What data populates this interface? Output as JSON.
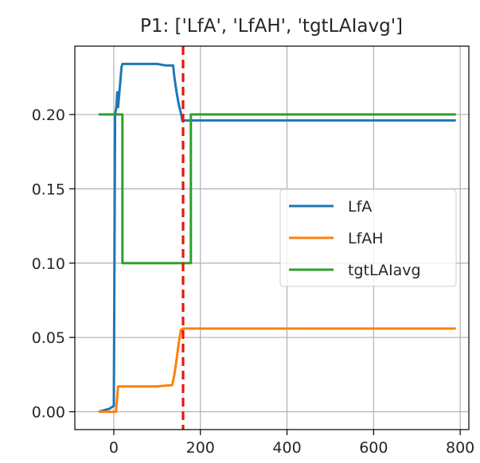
{
  "chart_data": {
    "type": "line",
    "title": "P1: ['LfA', 'LfAH', 'tgtLAIavg']",
    "xlabel": "",
    "ylabel": "",
    "xlim": [
      -90,
      820
    ],
    "ylim": [
      -0.012,
      0.246
    ],
    "xticks": [
      0,
      200,
      400,
      600,
      800
    ],
    "xtick_labels": [
      "0",
      "200",
      "400",
      "600",
      "800"
    ],
    "yticks": [
      0.0,
      0.05,
      0.1,
      0.15,
      0.2
    ],
    "ytick_labels": [
      "0.00",
      "0.05",
      "0.10",
      "0.15",
      "0.20"
    ],
    "grid": true,
    "legend_position": "center-right",
    "vline": {
      "x": 160,
      "color": "#e8170b",
      "style": "dashed"
    },
    "series": [
      {
        "name": "LfA",
        "color": "#1f77b4",
        "x": [
          -35,
          -10,
          0,
          3,
          6,
          8,
          10,
          13,
          18,
          20,
          40,
          60,
          80,
          100,
          120,
          137,
          140,
          145,
          150,
          155,
          158,
          160,
          162,
          170,
          175,
          200,
          300,
          400,
          500,
          600,
          700,
          790
        ],
        "y": [
          0.0,
          0.002,
          0.004,
          0.2,
          0.205,
          0.215,
          0.205,
          0.215,
          0.232,
          0.234,
          0.234,
          0.234,
          0.234,
          0.234,
          0.233,
          0.233,
          0.225,
          0.215,
          0.207,
          0.201,
          0.196,
          0.196,
          0.196,
          0.196,
          0.196,
          0.196,
          0.196,
          0.196,
          0.196,
          0.196,
          0.196,
          0.196
        ]
      },
      {
        "name": "LfAH",
        "color": "#ff7f0e",
        "x": [
          -35,
          -10,
          5,
          10,
          20,
          50,
          100,
          135,
          140,
          145,
          150,
          155,
          160,
          170,
          200,
          300,
          400,
          500,
          600,
          700,
          790
        ],
        "y": [
          0.0,
          0.0,
          0.0,
          0.017,
          0.017,
          0.017,
          0.017,
          0.018,
          0.025,
          0.035,
          0.046,
          0.055,
          0.056,
          0.056,
          0.056,
          0.056,
          0.056,
          0.056,
          0.056,
          0.056,
          0.056
        ]
      },
      {
        "name": "tgtLAIavg",
        "color": "#2ca02c",
        "x": [
          -35,
          20,
          20,
          178,
          178,
          790
        ],
        "y": [
          0.2,
          0.2,
          0.1,
          0.1,
          0.2,
          0.2
        ]
      }
    ]
  }
}
